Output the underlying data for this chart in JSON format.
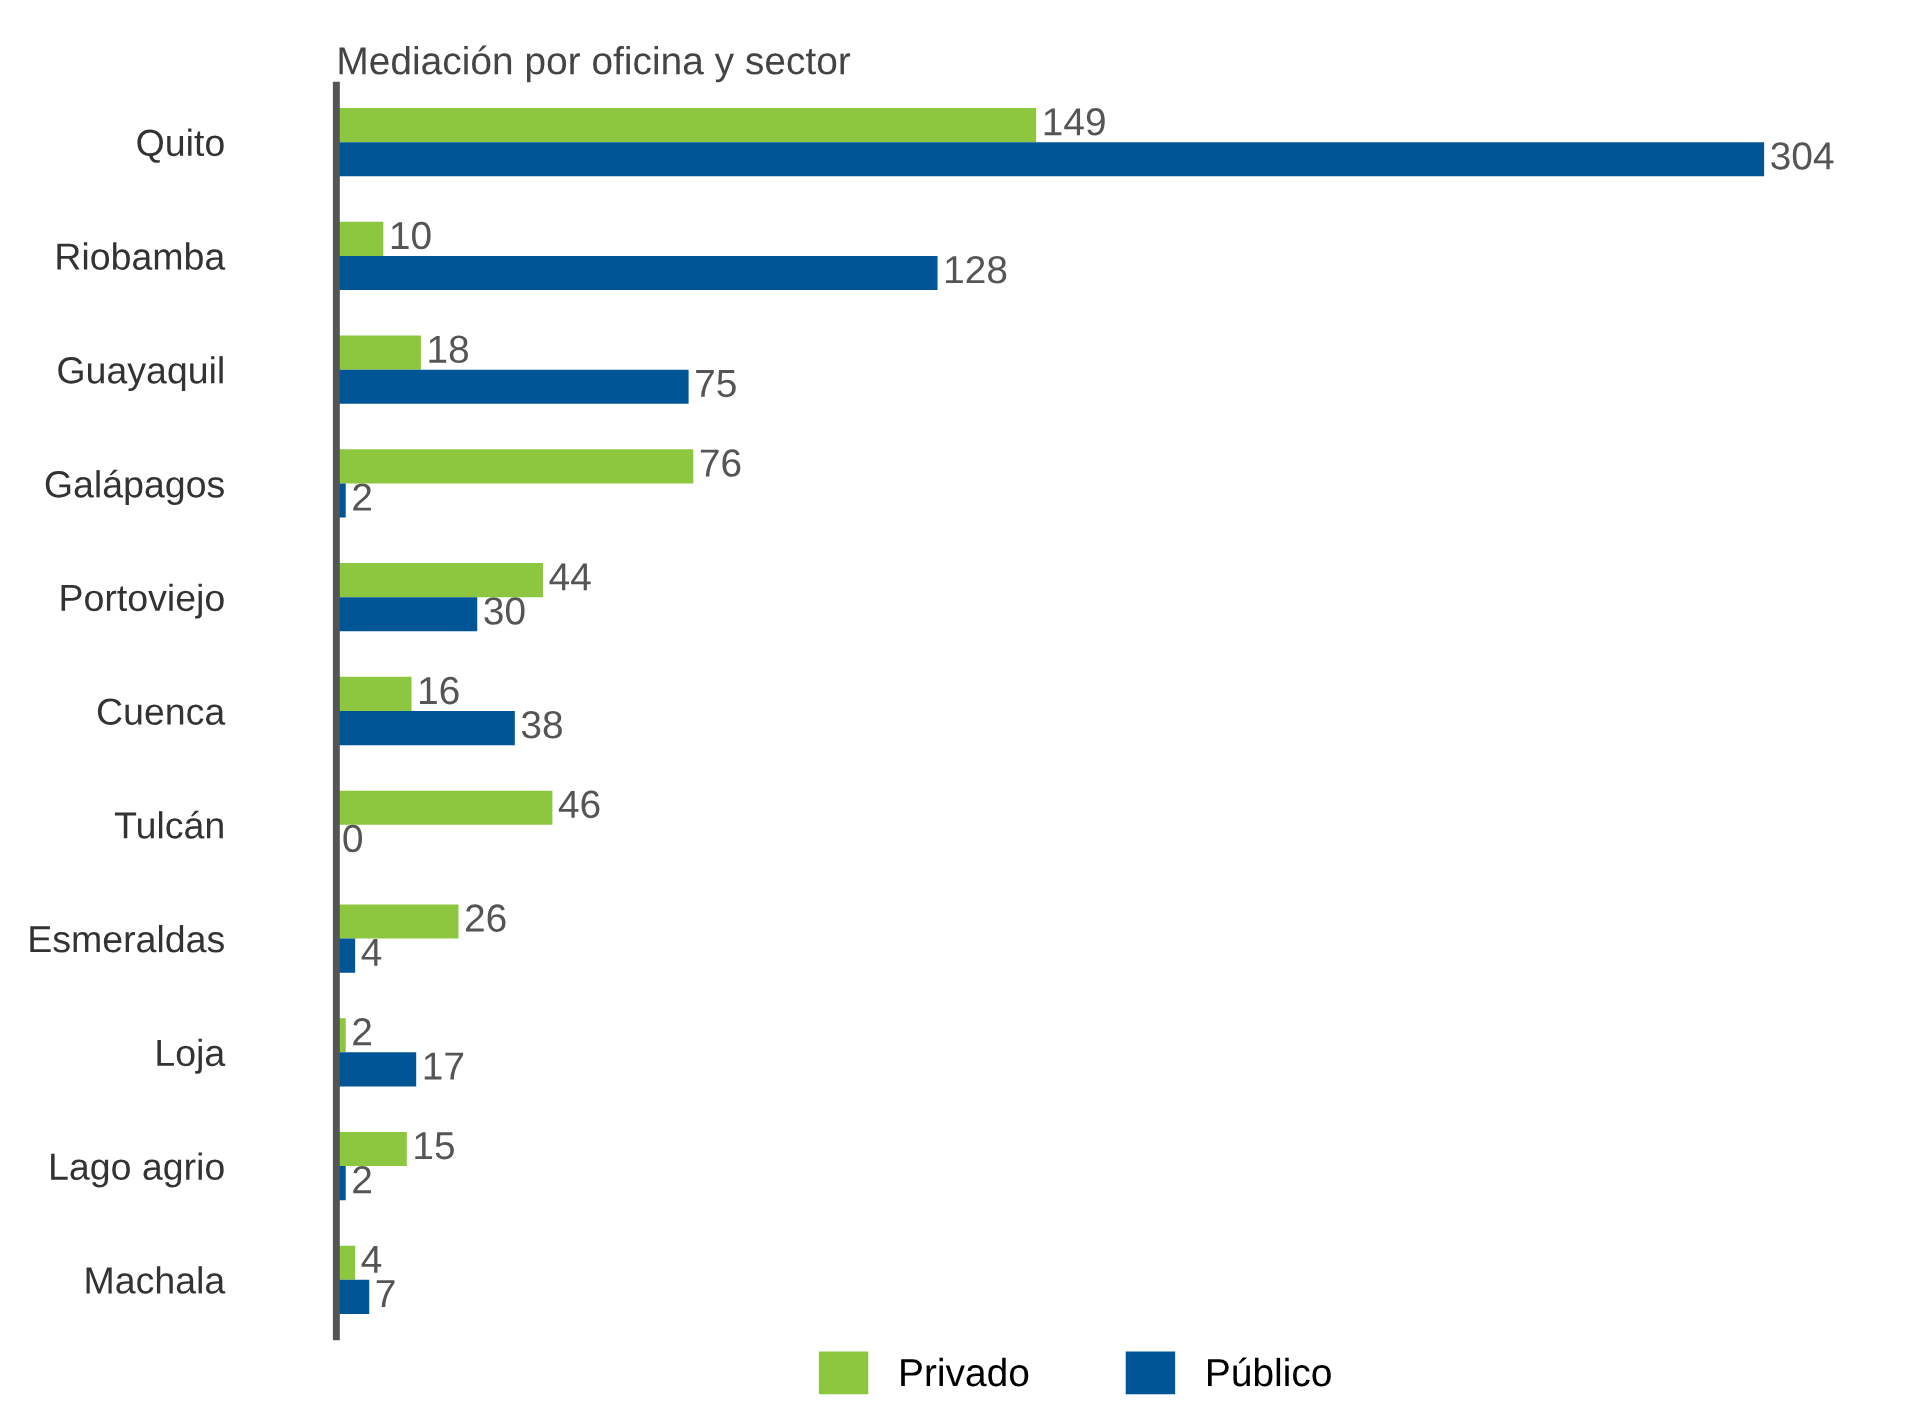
{
  "chart_data": {
    "type": "bar",
    "orientation": "horizontal",
    "title": "Mediación por oficina y sector",
    "categories": [
      "Quito",
      "Riobamba",
      "Guayaquil",
      "Galápagos",
      "Portoviejo",
      "Cuenca",
      "Tulcán",
      "Esmeraldas",
      "Loja",
      "Lago agrio",
      "Machala"
    ],
    "series": [
      {
        "name": "Privado",
        "color": "#8dc63f",
        "values": [
          149,
          10,
          18,
          76,
          44,
          16,
          46,
          26,
          2,
          15,
          4
        ]
      },
      {
        "name": "Público",
        "color": "#005596",
        "values": [
          304,
          128,
          75,
          2,
          30,
          38,
          0,
          4,
          17,
          2,
          7
        ]
      }
    ],
    "data_labels": true,
    "legend": "bottom",
    "grid": false
  }
}
